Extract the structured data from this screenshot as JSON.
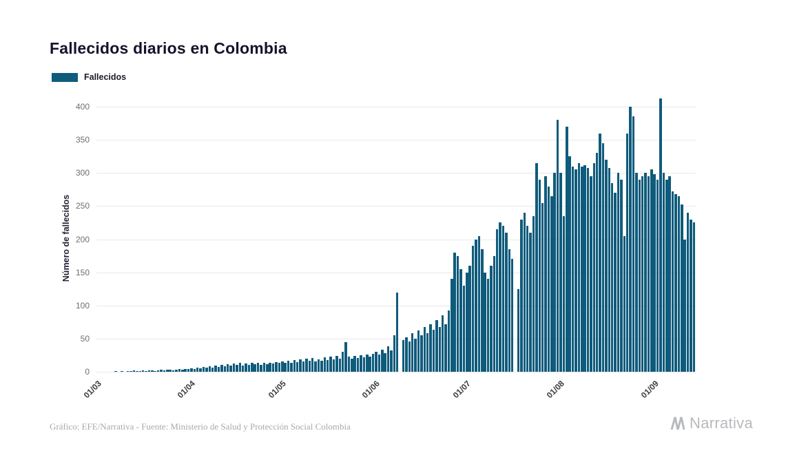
{
  "title": "Fallecidos diarios en Colombia",
  "legend": {
    "label": "Fallecidos",
    "color": "#0f5b7c"
  },
  "footer": {
    "credit": "Gráfico: EFE/Narrativa - Fuente: Ministerio de Salud y Protección Social Colombia",
    "brand": "Narrativa"
  },
  "chart_data": {
    "type": "bar",
    "title": "Fallecidos diarios en Colombia",
    "series_name": "Fallecidos",
    "xlabel": "",
    "ylabel": "Número de fallecidos",
    "ylim": [
      0,
      400
    ],
    "grid": true,
    "legend_position": "top-left",
    "bar_color": "#0f5b7c",
    "y_ticks": [
      0,
      50,
      100,
      150,
      200,
      250,
      300,
      350,
      400
    ],
    "x_tick_labels": [
      "01/03",
      "01/04",
      "01/05",
      "01/06",
      "01/07",
      "01/08",
      "01/09"
    ],
    "x_tick_day_indices": [
      0,
      31,
      61,
      92,
      122,
      153,
      184
    ],
    "start_label": "01/03",
    "values": [
      0,
      0,
      0,
      0,
      0,
      0,
      1,
      0,
      1,
      0,
      1,
      1,
      2,
      1,
      1,
      2,
      1,
      2,
      2,
      1,
      2,
      3,
      2,
      3,
      3,
      2,
      3,
      4,
      3,
      4,
      4,
      5,
      4,
      6,
      5,
      7,
      6,
      8,
      6,
      9,
      7,
      10,
      8,
      11,
      9,
      12,
      10,
      13,
      9,
      12,
      10,
      13,
      11,
      14,
      10,
      13,
      11,
      14,
      12,
      15,
      13,
      16,
      13,
      17,
      14,
      18,
      15,
      19,
      16,
      20,
      17,
      21,
      16,
      19,
      17,
      22,
      18,
      23,
      19,
      24,
      20,
      30,
      45,
      23,
      20,
      24,
      21,
      25,
      22,
      26,
      23,
      27,
      30,
      26,
      33,
      28,
      38,
      32,
      55,
      119,
      0,
      48,
      52,
      46,
      58,
      50,
      62,
      55,
      68,
      58,
      72,
      63,
      78,
      68,
      85,
      72,
      92,
      140,
      180,
      175,
      155,
      130,
      150,
      160,
      190,
      200,
      205,
      185,
      150,
      140,
      160,
      175,
      215,
      225,
      220,
      210,
      185,
      170,
      0,
      125,
      230,
      240,
      220,
      210,
      235,
      315,
      290,
      255,
      295,
      280,
      265,
      300,
      380,
      300,
      235,
      370,
      325,
      310,
      305,
      315,
      310,
      312,
      308,
      295,
      315,
      330,
      360,
      345,
      320,
      308,
      285,
      270,
      300,
      290,
      205,
      360,
      400,
      385,
      300,
      290,
      295,
      300,
      295,
      305,
      298,
      290,
      412,
      300,
      290,
      295,
      272,
      268,
      265,
      252,
      200,
      240,
      230,
      225
    ]
  }
}
